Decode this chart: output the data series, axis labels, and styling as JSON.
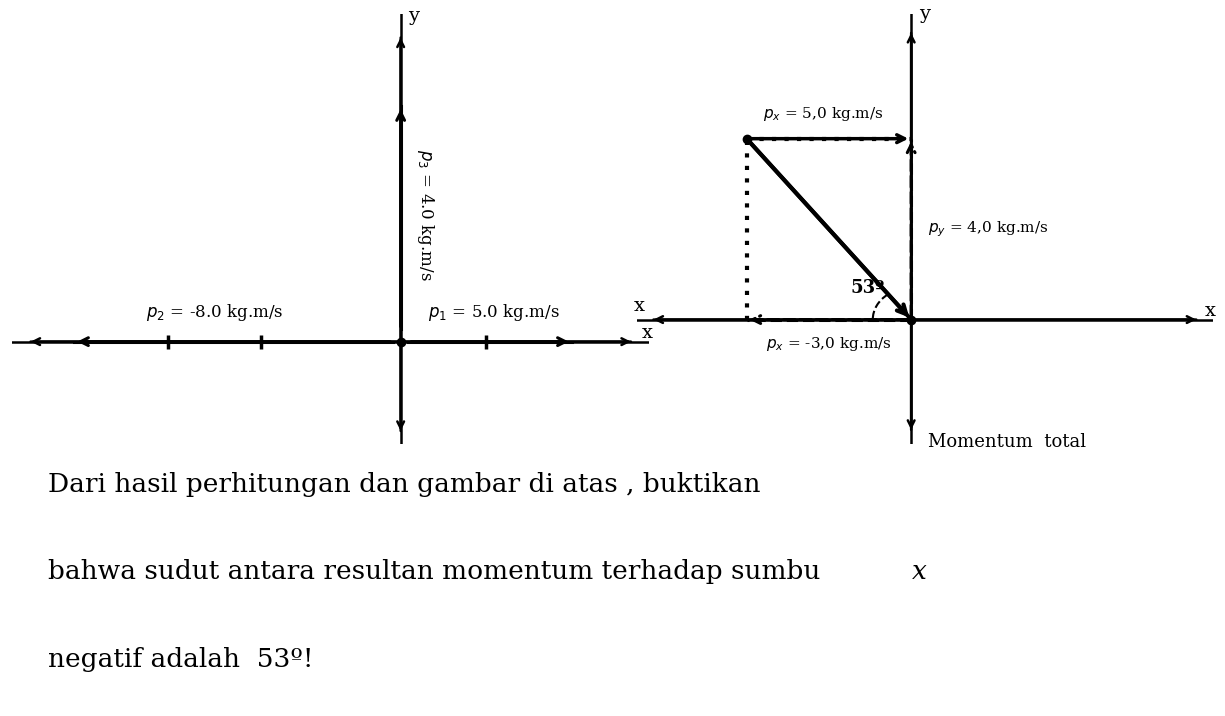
{
  "bg_color": "#ffffff",
  "fig_width": 12.25,
  "fig_height": 7.16,
  "left": {
    "p2_label": "$p_2$ = -8.0 kg.m/s",
    "p1_label": "$p_1$ = 5.0 kg.m/s",
    "p3_label": "$p_3$ = 4.0 kg.m/s"
  },
  "right": {
    "px_top_label": "$p_x$ = 5,0 kg.m/s",
    "py_label": "$p_y$ = 4,0 kg.m/s",
    "px_bot_label": "$p_x$ = -3,0 kg.m/s",
    "angle_label": "53º",
    "caption": "Momentum  total"
  },
  "text_line1": "Dari hasil perhitungan dan gambar di atas , buktikan",
  "text_line2a": "bahwa sudut antara resultan momentum terhadap sumbu ",
  "text_line2b": "x",
  "text_line3": "negatif adalah  53º!"
}
